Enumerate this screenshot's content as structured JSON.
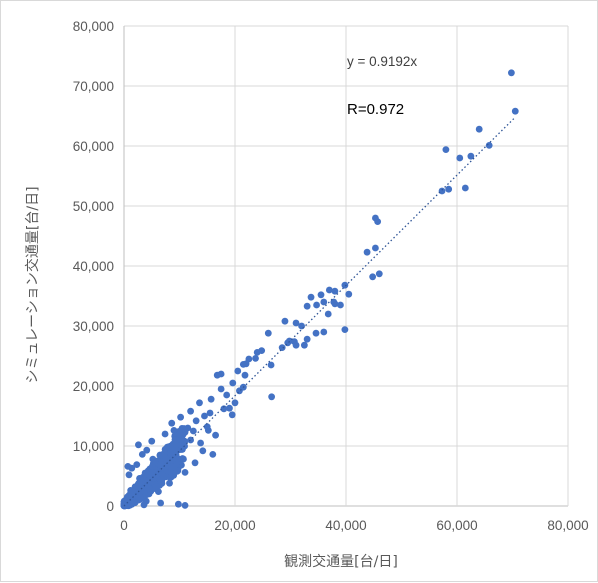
{
  "chart_data": {
    "type": "scatter",
    "title": "",
    "xlabel": "観測交通量[台/日]",
    "ylabel": "シミュレーション交通量[台/日]",
    "xlim": [
      0,
      80000
    ],
    "ylim": [
      0,
      80000
    ],
    "x_ticks": [
      "0",
      "20,000",
      "40,000",
      "60,000",
      "80,000"
    ],
    "y_ticks": [
      "0",
      "10,000",
      "20,000",
      "30,000",
      "40,000",
      "50,000",
      "60,000",
      "70,000",
      "80,000"
    ],
    "grid": true,
    "marker_color": "#4472c4",
    "trendline": {
      "type": "linear",
      "slope": 0.9192,
      "intercept": 0,
      "style": "dotted",
      "x_range": [
        0,
        70500
      ]
    },
    "annotations": {
      "equation": "y = 0.9192x",
      "r_value": "R=0.972"
    },
    "points": [
      [
        69800,
        72200
      ],
      [
        70500,
        65800
      ],
      [
        64000,
        62800
      ],
      [
        62500,
        58300
      ],
      [
        65800,
        60100
      ],
      [
        60500,
        58000
      ],
      [
        58000,
        59400
      ],
      [
        61500,
        53000
      ],
      [
        58500,
        52800
      ],
      [
        57300,
        52500
      ],
      [
        45300,
        48000
      ],
      [
        45700,
        47400
      ],
      [
        43800,
        42300
      ],
      [
        45300,
        43000
      ],
      [
        44800,
        38200
      ],
      [
        46000,
        38700
      ],
      [
        39800,
        36800
      ],
      [
        40500,
        35300
      ],
      [
        38000,
        35800
      ],
      [
        37000,
        36000
      ],
      [
        37800,
        34000
      ],
      [
        36000,
        34000
      ],
      [
        35500,
        35200
      ],
      [
        34700,
        33500
      ],
      [
        33700,
        34800
      ],
      [
        33000,
        33300
      ],
      [
        39000,
        33500
      ],
      [
        38000,
        33700
      ],
      [
        39800,
        29400
      ],
      [
        36000,
        29000
      ],
      [
        34600,
        28800
      ],
      [
        36800,
        32000
      ],
      [
        31000,
        30500
      ],
      [
        32000,
        30000
      ],
      [
        32500,
        26800
      ],
      [
        30700,
        27400
      ],
      [
        31000,
        26800
      ],
      [
        33000,
        27800
      ],
      [
        29000,
        30800
      ],
      [
        29800,
        27500
      ],
      [
        28500,
        26400
      ],
      [
        29500,
        27200
      ],
      [
        26000,
        28800
      ],
      [
        26500,
        23500
      ],
      [
        24800,
        25900
      ],
      [
        24000,
        25600
      ],
      [
        23700,
        24600
      ],
      [
        22500,
        24500
      ],
      [
        22000,
        23700
      ],
      [
        21500,
        23600
      ],
      [
        20500,
        22500
      ],
      [
        21800,
        21800
      ],
      [
        19600,
        20500
      ],
      [
        20800,
        19200
      ],
      [
        17500,
        22000
      ],
      [
        16800,
        21800
      ],
      [
        18500,
        18500
      ],
      [
        15700,
        17800
      ],
      [
        19000,
        16300
      ],
      [
        18000,
        16200
      ],
      [
        19500,
        15200
      ],
      [
        17500,
        19500
      ],
      [
        26600,
        18200
      ],
      [
        21500,
        19800
      ],
      [
        20000,
        17200
      ],
      [
        15500,
        15500
      ],
      [
        14500,
        15000
      ],
      [
        13000,
        14200
      ],
      [
        12500,
        12500
      ],
      [
        11500,
        13000
      ],
      [
        11000,
        12300
      ],
      [
        13800,
        10500
      ],
      [
        16500,
        11800
      ],
      [
        15000,
        13200
      ],
      [
        12000,
        11000
      ],
      [
        10500,
        9800
      ],
      [
        9500,
        11500
      ],
      [
        8800,
        10200
      ],
      [
        9200,
        8800
      ],
      [
        10000,
        7500
      ],
      [
        7800,
        9800
      ],
      [
        8500,
        8200
      ],
      [
        6500,
        8500
      ],
      [
        7200,
        7200
      ],
      [
        6000,
        6800
      ],
      [
        5200,
        7800
      ],
      [
        5500,
        5500
      ],
      [
        4800,
        6200
      ],
      [
        4200,
        4800
      ],
      [
        3800,
        5500
      ],
      [
        3500,
        4000
      ],
      [
        3000,
        3500
      ],
      [
        2800,
        4600
      ],
      [
        2500,
        2800
      ],
      [
        2000,
        3200
      ],
      [
        1800,
        2200
      ],
      [
        1500,
        1800
      ],
      [
        1200,
        2600
      ],
      [
        1000,
        1200
      ],
      [
        800,
        900
      ],
      [
        600,
        1500
      ],
      [
        500,
        600
      ],
      [
        400,
        300
      ],
      [
        300,
        800
      ],
      [
        200,
        200
      ],
      [
        1500,
        500
      ],
      [
        2200,
        900
      ],
      [
        3000,
        1200
      ],
      [
        4500,
        2000
      ],
      [
        5800,
        3200
      ],
      [
        6800,
        4200
      ],
      [
        7500,
        5800
      ],
      [
        9800,
        6400
      ],
      [
        8200,
        3800
      ],
      [
        11000,
        5600
      ],
      [
        12800,
        7200
      ],
      [
        14200,
        9200
      ],
      [
        16000,
        8600
      ],
      [
        6200,
        2400
      ],
      [
        4000,
        800
      ],
      [
        700,
        6600
      ],
      [
        900,
        5200
      ],
      [
        1400,
        6300
      ],
      [
        2300,
        6900
      ],
      [
        3300,
        8600
      ],
      [
        4100,
        9300
      ],
      [
        11000,
        100
      ],
      [
        9800,
        300
      ],
      [
        3600,
        200
      ],
      [
        6600,
        500
      ],
      [
        2600,
        10200
      ],
      [
        5000,
        10800
      ],
      [
        7400,
        12000
      ],
      [
        8600,
        13800
      ],
      [
        10200,
        14800
      ],
      [
        13600,
        17200
      ],
      [
        15200,
        12600
      ],
      [
        12000,
        15800
      ],
      [
        10400,
        10400
      ],
      [
        9000,
        12600
      ]
    ]
  }
}
